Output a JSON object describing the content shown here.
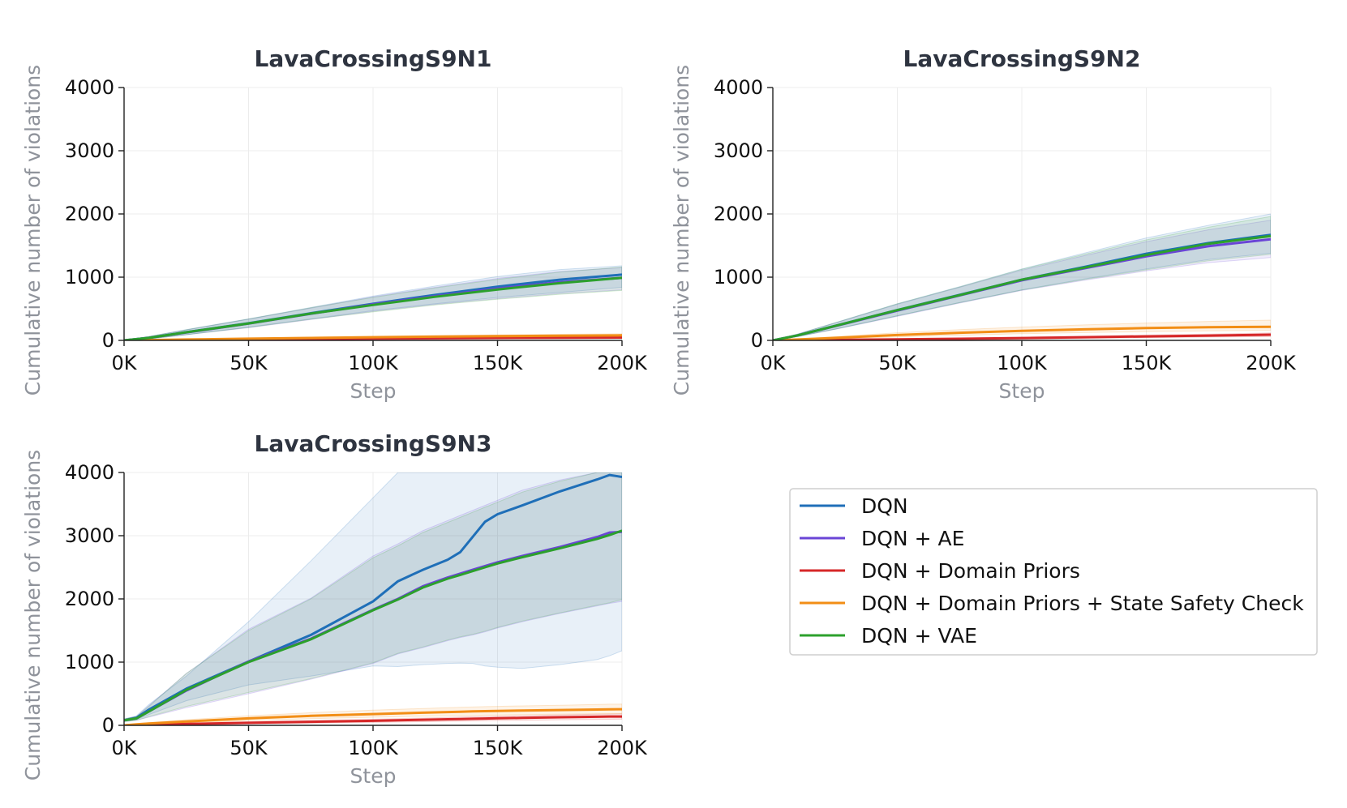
{
  "chart_data": [
    {
      "type": "line",
      "title": "LavaCrossingS9N1",
      "xlabel": "Step",
      "ylabel": "Cumulative number of violations",
      "xlim": [
        0,
        200000
      ],
      "ylim": [
        0,
        4000
      ],
      "xticks": [
        0,
        50000,
        100000,
        150000,
        200000
      ],
      "xtick_labels": [
        "0K",
        "50K",
        "100K",
        "150K",
        "200K"
      ],
      "yticks": [
        0,
        1000,
        2000,
        3000,
        4000
      ],
      "ytick_labels": [
        "0",
        "1000",
        "2000",
        "3000",
        "4000"
      ],
      "grid": true,
      "x": [
        0,
        10000,
        25000,
        50000,
        75000,
        100000,
        125000,
        150000,
        175000,
        200000
      ],
      "series": [
        {
          "name": "DQN",
          "color": "#1f6fb8",
          "values": [
            0,
            40,
            130,
            270,
            430,
            580,
            720,
            850,
            960,
            1040
          ],
          "lower": [
            0,
            25,
            90,
            210,
            340,
            470,
            580,
            680,
            760,
            840
          ],
          "upper": [
            0,
            60,
            170,
            340,
            520,
            700,
            860,
            1010,
            1120,
            1180
          ]
        },
        {
          "name": "DQN + AE",
          "color": "#6a45d6",
          "values": [
            0,
            40,
            125,
            265,
            420,
            570,
            700,
            820,
            920,
            990
          ],
          "lower": [
            0,
            25,
            90,
            200,
            330,
            460,
            570,
            660,
            740,
            800
          ],
          "upper": [
            0,
            60,
            165,
            335,
            510,
            690,
            840,
            980,
            1090,
            1150
          ]
        },
        {
          "name": "DQN + Domain Priors",
          "color": "#d62728",
          "values": [
            0,
            3,
            8,
            15,
            22,
            28,
            33,
            38,
            42,
            45
          ],
          "lower": [
            0,
            1,
            5,
            10,
            15,
            20,
            24,
            27,
            30,
            32
          ],
          "upper": [
            0,
            5,
            12,
            20,
            29,
            36,
            42,
            48,
            53,
            58
          ]
        },
        {
          "name": "DQN + Domain Priors + State Safety Check",
          "color": "#f28e16",
          "values": [
            0,
            5,
            14,
            27,
            39,
            50,
            59,
            67,
            74,
            80
          ],
          "lower": [
            0,
            3,
            9,
            18,
            27,
            35,
            42,
            48,
            53,
            57
          ],
          "upper": [
            0,
            8,
            19,
            36,
            51,
            65,
            77,
            87,
            96,
            104
          ]
        },
        {
          "name": "DQN + VAE",
          "color": "#2ca02c",
          "values": [
            0,
            40,
            128,
            268,
            425,
            560,
            690,
            805,
            905,
            990
          ],
          "lower": [
            0,
            25,
            90,
            205,
            335,
            450,
            560,
            650,
            730,
            790
          ],
          "upper": [
            0,
            60,
            168,
            338,
            515,
            680,
            830,
            965,
            1080,
            1160
          ]
        }
      ]
    },
    {
      "type": "line",
      "title": "LavaCrossingS9N2",
      "xlabel": "Step",
      "ylabel": "Cumulative number of violations",
      "xlim": [
        0,
        200000
      ],
      "ylim": [
        0,
        4000
      ],
      "xticks": [
        0,
        50000,
        100000,
        150000,
        200000
      ],
      "xtick_labels": [
        "0K",
        "50K",
        "100K",
        "150K",
        "200K"
      ],
      "yticks": [
        0,
        1000,
        2000,
        3000,
        4000
      ],
      "ytick_labels": [
        "0",
        "1000",
        "2000",
        "3000",
        "4000"
      ],
      "grid": true,
      "x": [
        0,
        10000,
        25000,
        50000,
        75000,
        100000,
        125000,
        150000,
        175000,
        200000
      ],
      "series": [
        {
          "name": "DQN",
          "color": "#1f6fb8",
          "values": [
            0,
            80,
            230,
            480,
            720,
            960,
            1160,
            1370,
            1540,
            1670
          ],
          "lower": [
            0,
            60,
            180,
            390,
            600,
            800,
            970,
            1130,
            1280,
            1380
          ],
          "upper": [
            0,
            100,
            280,
            580,
            850,
            1130,
            1380,
            1620,
            1820,
            2000
          ]
        },
        {
          "name": "DQN + AE",
          "color": "#6a45d6",
          "values": [
            0,
            80,
            225,
            470,
            710,
            950,
            1140,
            1330,
            1490,
            1600
          ],
          "lower": [
            0,
            60,
            175,
            380,
            590,
            790,
            950,
            1100,
            1230,
            1310
          ],
          "upper": [
            0,
            100,
            275,
            570,
            840,
            1110,
            1340,
            1560,
            1750,
            1900
          ]
        },
        {
          "name": "DQN + Domain Priors",
          "color": "#d62728",
          "values": [
            0,
            3,
            8,
            16,
            26,
            37,
            50,
            63,
            76,
            90
          ],
          "lower": [
            0,
            1,
            4,
            9,
            16,
            24,
            33,
            42,
            52,
            62
          ],
          "upper": [
            0,
            6,
            12,
            24,
            36,
            50,
            67,
            84,
            100,
            118
          ]
        },
        {
          "name": "DQN + Domain Priors + State Safety Check",
          "color": "#f28e16",
          "values": [
            0,
            14,
            40,
            85,
            120,
            150,
            175,
            195,
            208,
            215
          ],
          "lower": [
            0,
            8,
            25,
            55,
            80,
            105,
            123,
            138,
            150,
            158
          ],
          "upper": [
            0,
            20,
            58,
            120,
            170,
            210,
            245,
            275,
            300,
            320
          ]
        },
        {
          "name": "DQN + VAE",
          "color": "#2ca02c",
          "values": [
            0,
            80,
            228,
            478,
            715,
            960,
            1150,
            1350,
            1530,
            1650
          ],
          "lower": [
            0,
            60,
            178,
            388,
            596,
            796,
            962,
            1115,
            1260,
            1360
          ],
          "upper": [
            0,
            100,
            278,
            578,
            845,
            1124,
            1360,
            1590,
            1790,
            1960
          ]
        }
      ]
    },
    {
      "type": "line",
      "title": "LavaCrossingS9N3",
      "xlabel": "Step",
      "ylabel": "Cumulative number of violations",
      "xlim": [
        0,
        200000
      ],
      "ylim": [
        0,
        4000
      ],
      "xticks": [
        0,
        50000,
        100000,
        150000,
        200000
      ],
      "xtick_labels": [
        "0K",
        "50K",
        "100K",
        "150K",
        "200K"
      ],
      "yticks": [
        0,
        1000,
        2000,
        3000,
        4000
      ],
      "ytick_labels": [
        "0",
        "1000",
        "2000",
        "3000",
        "4000"
      ],
      "grid": true,
      "x": [
        0,
        5000,
        10000,
        25000,
        50000,
        75000,
        100000,
        110000,
        120000,
        130000,
        135000,
        140000,
        145000,
        150000,
        160000,
        175000,
        190000,
        195000,
        200000
      ],
      "series": [
        {
          "name": "DQN",
          "color": "#1f6fb8",
          "values": [
            80,
            120,
            250,
            580,
            1010,
            1430,
            1960,
            2280,
            2460,
            2620,
            2740,
            2980,
            3220,
            3340,
            3480,
            3700,
            3890,
            3960,
            3930
          ],
          "lower": [
            60,
            90,
            170,
            390,
            640,
            780,
            940,
            930,
            960,
            980,
            985,
            980,
            940,
            920,
            900,
            960,
            1040,
            1100,
            1180
          ],
          "upper": [
            100,
            150,
            330,
            780,
            1640,
            2600,
            3600,
            4000,
            4000,
            4000,
            4000,
            4000,
            4000,
            4000,
            4000,
            4000,
            4000,
            4000,
            4000
          ]
        },
        {
          "name": "DQN + AE",
          "color": "#6a45d6",
          "values": [
            80,
            110,
            220,
            550,
            1010,
            1370,
            1830,
            2000,
            2200,
            2340,
            2400,
            2460,
            2520,
            2580,
            2680,
            2820,
            2980,
            3050,
            3060
          ],
          "lower": [
            60,
            80,
            130,
            280,
            500,
            730,
            980,
            1130,
            1230,
            1340,
            1390,
            1430,
            1480,
            1540,
            1640,
            1770,
            1890,
            1930,
            1960
          ],
          "upper": [
            100,
            140,
            310,
            820,
            1520,
            2010,
            2680,
            2870,
            3080,
            3240,
            3320,
            3400,
            3480,
            3560,
            3720,
            3880,
            4000,
            4000,
            4000
          ]
        },
        {
          "name": "DQN + Domain Priors",
          "color": "#d62728",
          "values": [
            0,
            5,
            10,
            22,
            40,
            56,
            72,
            80,
            88,
            96,
            100,
            104,
            108,
            112,
            118,
            128,
            136,
            140,
            140
          ],
          "lower": [
            0,
            2,
            5,
            12,
            24,
            35,
            46,
            52,
            58,
            64,
            67,
            70,
            73,
            76,
            81,
            88,
            94,
            96,
            98
          ],
          "upper": [
            0,
            8,
            16,
            32,
            56,
            76,
            96,
            106,
            116,
            126,
            131,
            136,
            141,
            146,
            154,
            166,
            176,
            180,
            182
          ]
        },
        {
          "name": "DQN + Domain Priors + State Safety Check",
          "color": "#f28e16",
          "values": [
            0,
            15,
            30,
            62,
            110,
            150,
            178,
            190,
            200,
            210,
            215,
            220,
            224,
            228,
            234,
            242,
            250,
            252,
            255
          ],
          "lower": [
            0,
            8,
            18,
            40,
            75,
            105,
            128,
            136,
            144,
            150,
            154,
            158,
            161,
            164,
            169,
            176,
            182,
            184,
            186
          ],
          "upper": [
            0,
            22,
            44,
            88,
            150,
            200,
            240,
            254,
            266,
            278,
            284,
            290,
            296,
            300,
            308,
            318,
            330,
            334,
            336
          ]
        },
        {
          "name": "DQN + VAE",
          "color": "#2ca02c",
          "values": [
            80,
            110,
            220,
            560,
            1000,
            1360,
            1820,
            1990,
            2180,
            2320,
            2380,
            2440,
            2500,
            2560,
            2660,
            2800,
            2950,
            3010,
            3080
          ],
          "lower": [
            60,
            80,
            140,
            300,
            520,
            740,
            990,
            1140,
            1240,
            1350,
            1400,
            1440,
            1490,
            1550,
            1650,
            1780,
            1900,
            1940,
            1990
          ],
          "upper": [
            100,
            140,
            300,
            820,
            1500,
            2000,
            2650,
            2840,
            3050,
            3210,
            3290,
            3370,
            3450,
            3530,
            3690,
            3860,
            4000,
            4000,
            4000
          ]
        }
      ]
    }
  ],
  "legend": {
    "placement": "lower-right panel",
    "entries": [
      {
        "label": "DQN",
        "color": "#1f6fb8"
      },
      {
        "label": "DQN + AE",
        "color": "#6a45d6"
      },
      {
        "label": "DQN + Domain Priors",
        "color": "#d62728"
      },
      {
        "label": "DQN + Domain Priors + State Safety Check",
        "color": "#f28e16"
      },
      {
        "label": "DQN + VAE",
        "color": "#2ca02c"
      }
    ]
  }
}
